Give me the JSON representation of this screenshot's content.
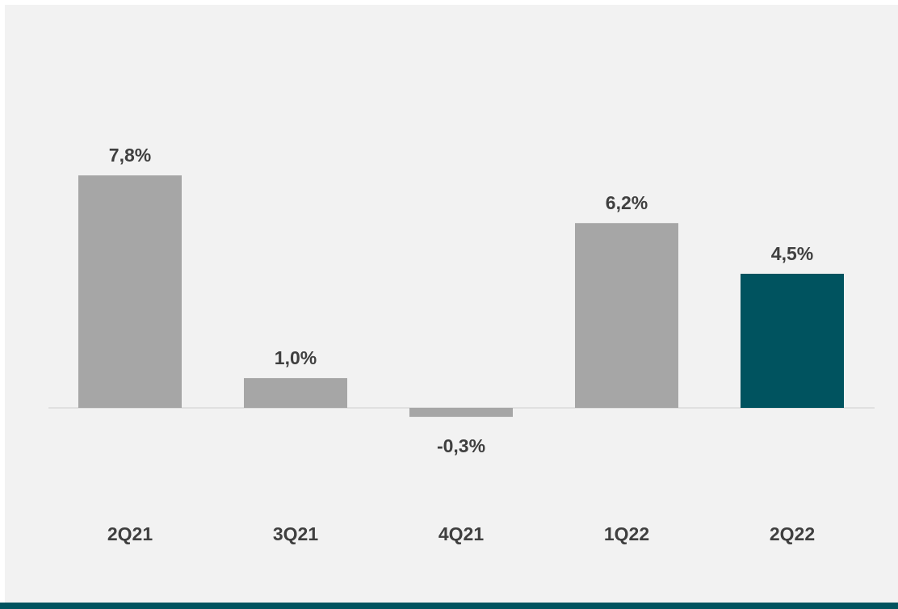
{
  "colors": {
    "panel_bg": "#f2f2f2",
    "bar_default": "#a6a6a6",
    "bar_highlight": "#00535f",
    "axis": "#d9d9d9",
    "text": "#3f3f3f",
    "bottom_band": "#00535f"
  },
  "chart_data": {
    "type": "bar",
    "categories": [
      "2Q21",
      "3Q21",
      "4Q21",
      "1Q22",
      "2Q22"
    ],
    "values": [
      7.8,
      1.0,
      -0.3,
      6.2,
      4.5
    ],
    "value_labels": [
      "7,8%",
      "1,0%",
      "-0,3%",
      "6,2%",
      "4,5%"
    ],
    "highlight_index": 4,
    "title": "",
    "xlabel": "",
    "ylabel": "",
    "ylim": [
      -0.3,
      7.8
    ],
    "grid": false,
    "legend": "none"
  }
}
